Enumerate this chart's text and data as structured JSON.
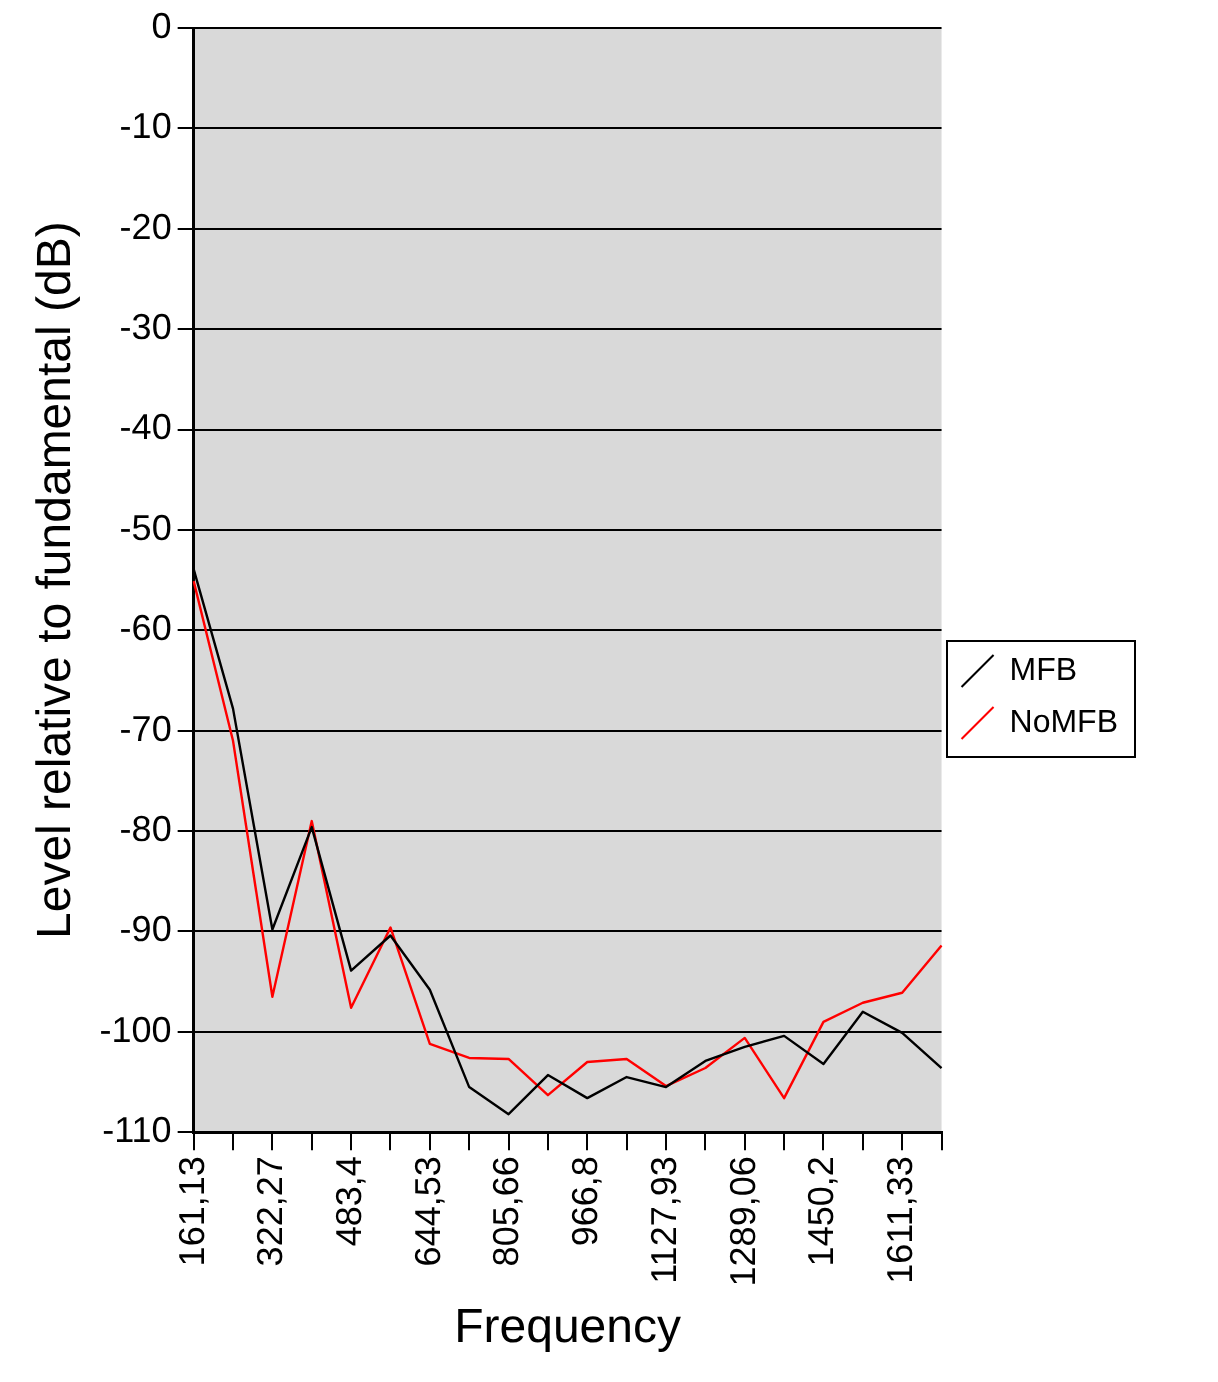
{
  "chart_data": {
    "type": "line",
    "xlabel": "Frequency",
    "ylabel": "Level relative to fundamental (dB)",
    "categories": [
      "161,13",
      null,
      "322,27",
      null,
      "483,4",
      null,
      "644,53",
      null,
      "805,66",
      null,
      "966,8",
      null,
      "1127,93",
      null,
      "1289,06",
      null,
      "1450,2",
      null,
      "1611,33",
      null
    ],
    "series": [
      {
        "name": "MFB",
        "color": "#000000",
        "values": [
          -53.9,
          -67.8,
          -89.8,
          -79.6,
          -93.9,
          -90.4,
          -95.8,
          -105.5,
          -108.2,
          -104.3,
          -106.6,
          -104.5,
          -105.5,
          -102.9,
          -101.5,
          -100.4,
          -103.2,
          -98.0,
          -100.1,
          -103.6
        ]
      },
      {
        "name": "NoMFB",
        "color": "#ff0000",
        "values": [
          -55.1,
          -71.0,
          -96.5,
          -79.0,
          -97.6,
          -89.6,
          -101.2,
          -102.6,
          -102.7,
          -106.3,
          -103.0,
          -102.7,
          -105.4,
          -103.6,
          -100.6,
          -106.6,
          -99.0,
          -97.1,
          -96.1,
          -91.4
        ]
      }
    ],
    "ylim": [
      -110,
      0
    ],
    "yticks": [
      -110,
      -100,
      -90,
      -80,
      -70,
      -60,
      -50,
      -40,
      -30,
      -20,
      -10,
      0
    ],
    "grid": "y",
    "legend": "right",
    "marker": "none",
    "line_style": "solid"
  }
}
